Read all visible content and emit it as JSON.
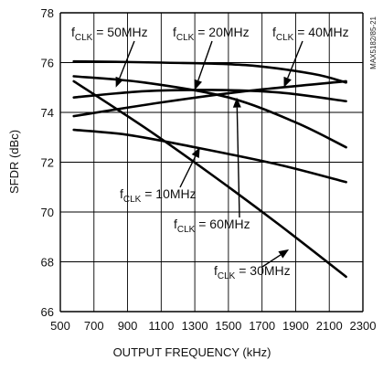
{
  "chart_data": {
    "type": "line",
    "title": "",
    "xlabel": "OUTPUT FREQUENCY (kHz)",
    "ylabel": "SFDR (dBc)",
    "xlim": [
      500,
      2300
    ],
    "ylim": [
      66,
      78
    ],
    "x_ticks": [
      500,
      700,
      900,
      1100,
      1300,
      1500,
      1700,
      1900,
      2100,
      2300
    ],
    "y_ticks": [
      66,
      68,
      70,
      72,
      74,
      76,
      78
    ],
    "x_tick_labels": [
      "500",
      "700",
      "900",
      "1100",
      "1300",
      "1500",
      "1700",
      "1900",
      "2100",
      "2300"
    ],
    "y_tick_labels": [
      "66",
      "68",
      "70",
      "72",
      "74",
      "76",
      "78"
    ],
    "grid": true,
    "side_label": "MAX5182/85-21",
    "series": [
      {
        "name": "fCLK = 50MHz",
        "x": [
          580,
          1100,
          1600,
          2000,
          2200
        ],
        "y": [
          76.05,
          76.0,
          75.9,
          75.55,
          75.2
        ]
      },
      {
        "name": "fCLK = 20MHz",
        "x": [
          580,
          1000,
          1400,
          1800,
          2200
        ],
        "y": [
          74.6,
          74.85,
          74.9,
          74.8,
          74.45
        ]
      },
      {
        "name": "fCLK = 40MHz",
        "x": [
          580,
          1100,
          1600,
          2200
        ],
        "y": [
          73.85,
          74.4,
          74.85,
          75.25
        ]
      },
      {
        "name": "fCLK = 10MHz",
        "x": [
          580,
          900,
          1300,
          1800,
          2200
        ],
        "y": [
          73.3,
          73.1,
          72.6,
          71.9,
          71.2
        ]
      },
      {
        "name": "fCLK = 60MHz",
        "x": [
          580,
          1000,
          1500,
          1900,
          2200
        ],
        "y": [
          75.45,
          75.2,
          74.6,
          73.6,
          72.6
        ]
      },
      {
        "name": "fCLK = 30MHz",
        "x": [
          580,
          1000,
          1400,
          1800,
          2200
        ],
        "y": [
          75.25,
          73.4,
          71.5,
          69.5,
          67.4
        ]
      }
    ],
    "annotations": [
      {
        "main": "f",
        "sub": "CLK",
        "rest": " = 50MHz"
      },
      {
        "main": "f",
        "sub": "CLK",
        "rest": " = 20MHz"
      },
      {
        "main": "f",
        "sub": "CLK",
        "rest": " = 40MHz"
      },
      {
        "main": "f",
        "sub": "CLK",
        "rest": " = 10MHz"
      },
      {
        "main": "f",
        "sub": "CLK",
        "rest": " = 60MHz"
      },
      {
        "main": "f",
        "sub": "CLK",
        "rest": " = 30MHz"
      }
    ]
  }
}
